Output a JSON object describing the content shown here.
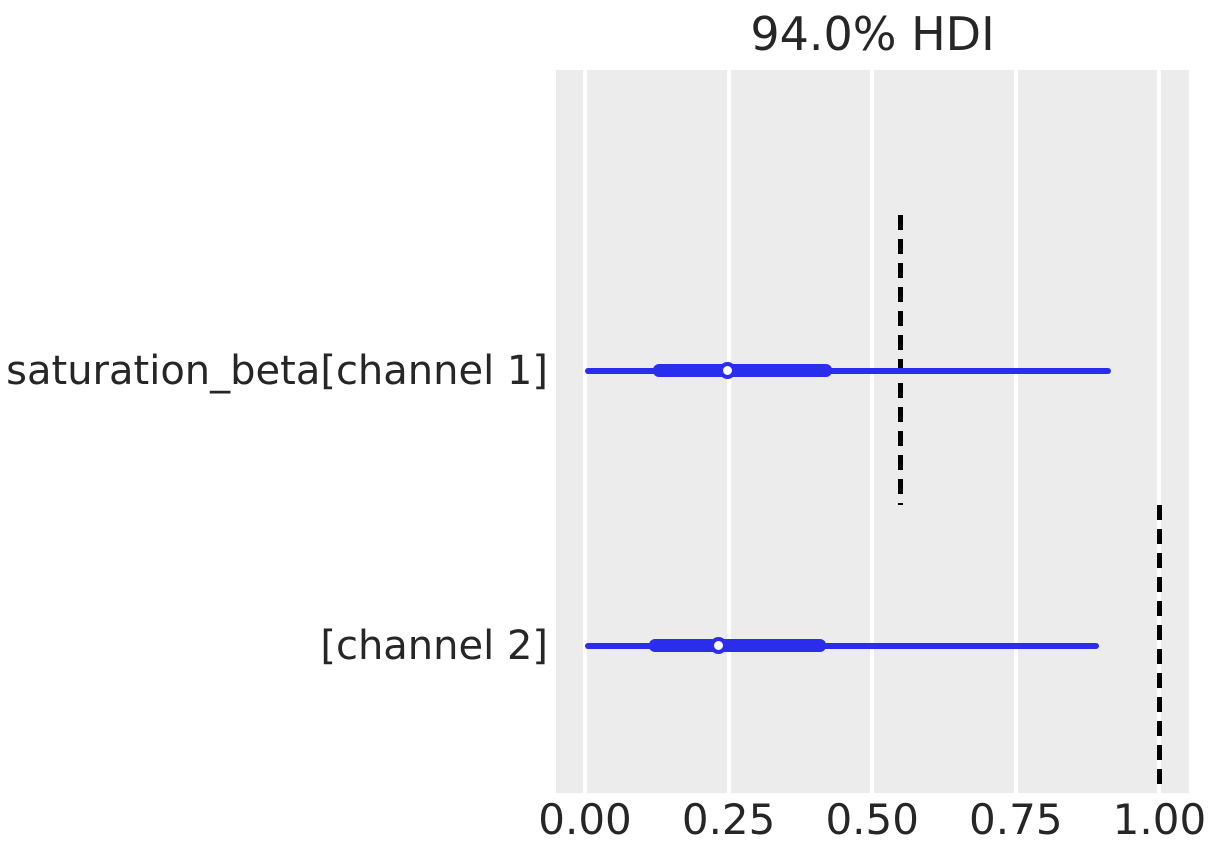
{
  "title": "94.0% HDI",
  "colors": {
    "line_blue": "#2a2eec",
    "axes_background": "#ececec",
    "gridline_white": "#ffffff",
    "text": "#262626",
    "reference_line": "#000000"
  },
  "chart_data": {
    "type": "forest",
    "title": "94.0% HDI",
    "hdi_probability": 0.94,
    "xlim": [
      -0.0505,
      1.0515
    ],
    "x_ticks": [
      0.0,
      0.25,
      0.5,
      0.75,
      1.0
    ],
    "x_tick_labels": [
      "0.00",
      "0.25",
      "0.50",
      "0.75",
      "1.00"
    ],
    "grid": true,
    "legend_position": "none",
    "rows": [
      {
        "label": "saturation_beta[channel 1]",
        "hdi_lower": 0.0,
        "quartile_lower": 0.118,
        "median": 0.248,
        "quartile_upper": 0.43,
        "hdi_upper": 0.915,
        "reference_value": 0.55
      },
      {
        "label": "[channel 2]",
        "hdi_lower": 0.0,
        "quartile_lower": 0.111,
        "median": 0.233,
        "quartile_upper": 0.419,
        "hdi_upper": 0.895,
        "reference_value": 1.0
      }
    ]
  }
}
